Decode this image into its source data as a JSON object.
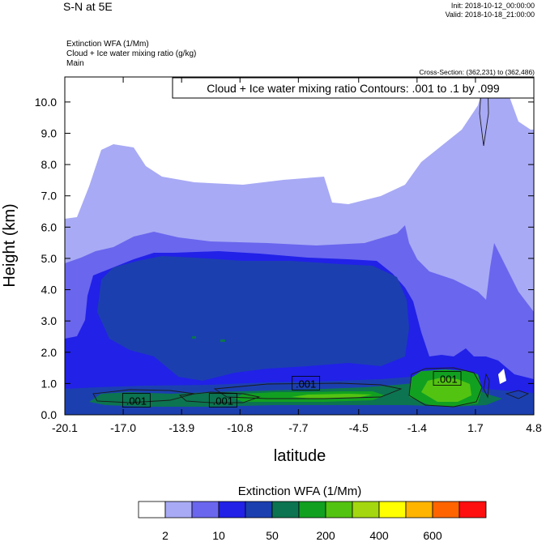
{
  "header": {
    "title": "S-N at 5E",
    "init": "Init: 2018-10-12_00:00:00",
    "valid": "Valid: 2018-10-18_21:00:00",
    "variables": [
      "Extinction WFA   (1/Mm)",
      "Cloud + Ice water mixing ratio   (g/kg)",
      "Main"
    ],
    "cross_section": "Cross-Section: (362,231) to (362,486)"
  },
  "chart_data": {
    "type": "heatmap",
    "contour_info": "Cloud + Ice water mixing ratio Contours: .001 to .1 by .099",
    "xlabel": "latitude",
    "ylabel": "Height (km)",
    "xlim": [
      -20.1,
      4.8
    ],
    "ylim": [
      0.0,
      10.8
    ],
    "x_ticks": [
      "-20.1",
      "-17.0",
      "-13.9",
      "-10.8",
      "-7.7",
      "-4.5",
      "-1.4",
      "1.7",
      "4.8"
    ],
    "y_ticks": [
      "0.0",
      "1.0",
      "2.0",
      "3.0",
      "4.0",
      "5.0",
      "6.0",
      "7.0",
      "8.0",
      "9.0",
      "10.0"
    ],
    "contour_labels": [
      {
        "text": ".001",
        "lat": -16.3,
        "h": 0.45
      },
      {
        "text": ".001",
        "lat": -11.7,
        "h": 0.45
      },
      {
        "text": ".001",
        "lat": -7.3,
        "h": 1.0
      },
      {
        "text": ".001",
        "lat": 0.2,
        "h": 1.15
      }
    ],
    "colorbar": {
      "title": "Extinction WFA  (1/Mm)",
      "colors": [
        "#ffffff",
        "#a8aaf5",
        "#6a66ee",
        "#2121e8",
        "#1c3fb0",
        "#0c7450",
        "#12a021",
        "#53c312",
        "#a4d70f",
        "#ffff00",
        "#ffb400",
        "#ff6400",
        "#ff1010"
      ],
      "labels": [
        "2",
        "10",
        "50",
        "200",
        "400",
        "600"
      ],
      "label_positions": [
        1,
        3,
        5,
        7,
        9,
        11
      ]
    }
  }
}
